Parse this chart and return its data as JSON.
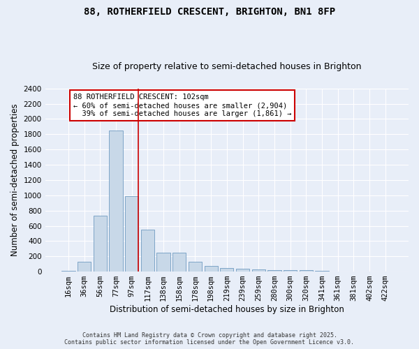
{
  "title_line1": "88, ROTHERFIELD CRESCENT, BRIGHTON, BN1 8FP",
  "title_line2": "Size of property relative to semi-detached houses in Brighton",
  "xlabel": "Distribution of semi-detached houses by size in Brighton",
  "ylabel": "Number of semi-detached properties",
  "categories": [
    "16sqm",
    "36sqm",
    "56sqm",
    "77sqm",
    "97sqm",
    "117sqm",
    "138sqm",
    "158sqm",
    "178sqm",
    "198sqm",
    "219sqm",
    "239sqm",
    "259sqm",
    "280sqm",
    "300sqm",
    "320sqm",
    "341sqm",
    "361sqm",
    "381sqm",
    "402sqm",
    "422sqm"
  ],
  "values": [
    10,
    130,
    730,
    1850,
    990,
    550,
    250,
    250,
    130,
    70,
    50,
    35,
    30,
    20,
    15,
    15,
    10,
    5,
    5,
    5,
    5
  ],
  "bar_color": "#c8d8e8",
  "bar_edge_color": "#5b8db8",
  "ylim": [
    0,
    2400
  ],
  "yticks": [
    0,
    200,
    400,
    600,
    800,
    1000,
    1200,
    1400,
    1600,
    1800,
    2000,
    2200,
    2400
  ],
  "property_bin_index": 4,
  "vline_color": "#cc0000",
  "annotation_text": "88 ROTHERFIELD CRESCENT: 102sqm\n← 60% of semi-detached houses are smaller (2,904)\n  39% of semi-detached houses are larger (1,861) →",
  "annotation_box_color": "#ffffff",
  "annotation_box_edge": "#cc0000",
  "footnote": "Contains HM Land Registry data © Crown copyright and database right 2025.\nContains public sector information licensed under the Open Government Licence v3.0.",
  "background_color": "#e8eef8",
  "grid_color": "#ffffff",
  "title_fontsize": 10,
  "subtitle_fontsize": 9,
  "tick_fontsize": 7.5,
  "label_fontsize": 8.5
}
